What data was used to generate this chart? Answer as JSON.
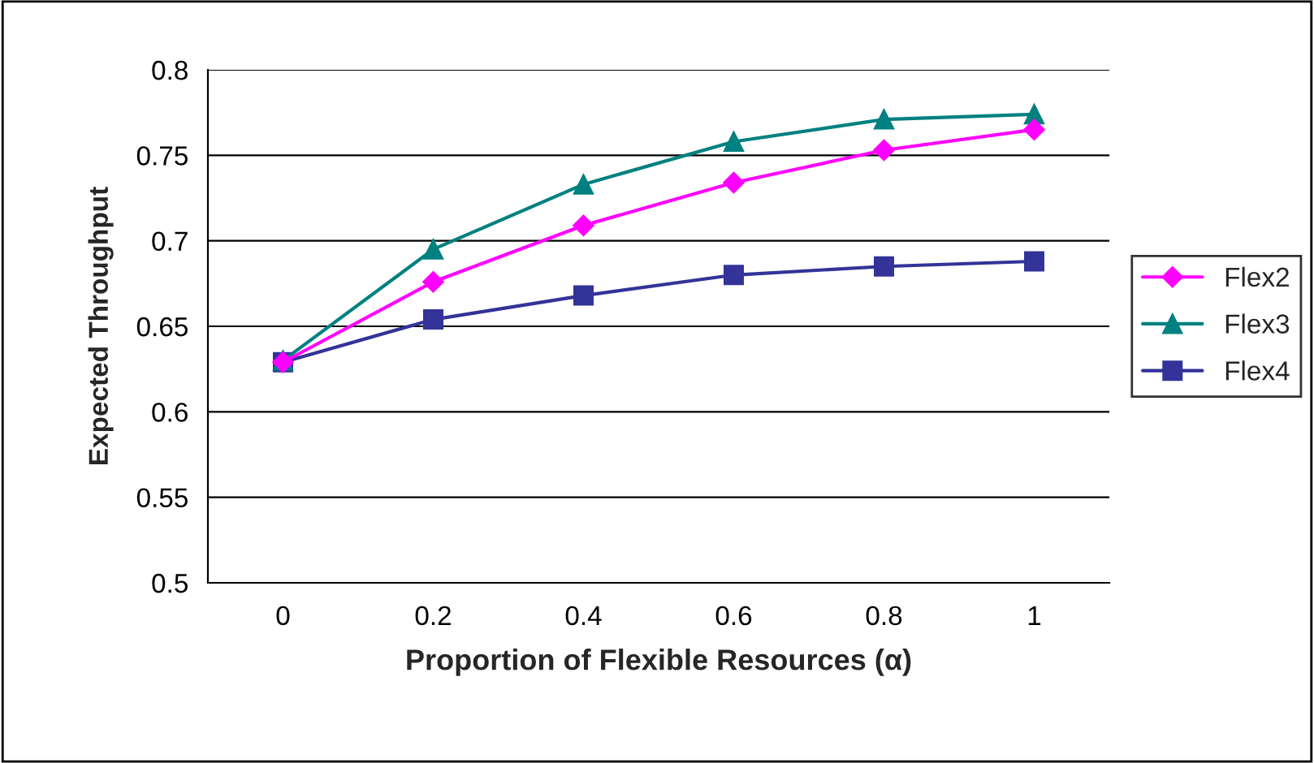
{
  "chart_data": {
    "type": "line",
    "xlabel": "Proportion of Flexible Resources (α)",
    "ylabel": "Expected Throughput",
    "categories": [
      "0",
      "0.2",
      "0.4",
      "0.6",
      "0.8",
      "1"
    ],
    "series": [
      {
        "name": "Flex2",
        "color": "#ff00ff",
        "marker": "diamond",
        "values": [
          0.629,
          0.676,
          0.709,
          0.734,
          0.753,
          0.765
        ]
      },
      {
        "name": "Flex3",
        "color": "#008080",
        "marker": "triangle",
        "values": [
          0.63,
          0.695,
          0.733,
          0.758,
          0.771,
          0.774
        ]
      },
      {
        "name": "Flex4",
        "color": "#333399",
        "marker": "square",
        "values": [
          0.629,
          0.654,
          0.668,
          0.68,
          0.685,
          0.688
        ]
      }
    ],
    "ylim": [
      0.5,
      0.8
    ],
    "yticks": [
      0.5,
      0.55,
      0.6,
      0.65,
      0.7,
      0.75,
      0.8
    ],
    "grid": "y",
    "legend": "right"
  }
}
